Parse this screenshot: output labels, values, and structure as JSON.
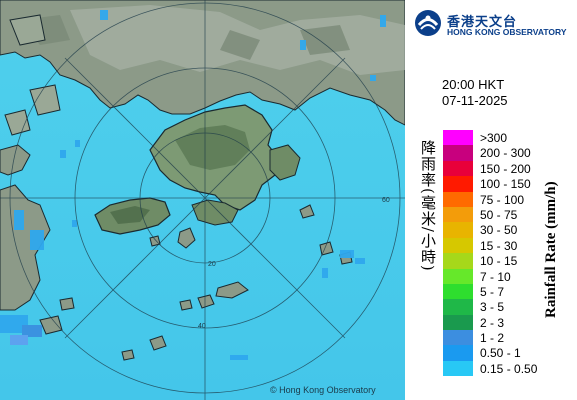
{
  "header": {
    "logo_zh": "香港天文台",
    "logo_en": "HONG KONG OBSERVATORY",
    "time": "20:00 HKT",
    "date": "07-11-2025"
  },
  "legend": {
    "title_zh": "降雨率(毫米/小時)",
    "title_en": "Rainfall Rate (mm/h)",
    "items": [
      {
        "label": ">300",
        "color": "#ff00ff"
      },
      {
        "label": "200 - 300",
        "color": "#c8007e"
      },
      {
        "label": "150 - 200",
        "color": "#e8003a"
      },
      {
        "label": "100 - 150",
        "color": "#ff1a00"
      },
      {
        "label": "75 - 100",
        "color": "#ff6a00"
      },
      {
        "label": "50 - 75",
        "color": "#f39c0a"
      },
      {
        "label": "30 - 50",
        "color": "#e8b400"
      },
      {
        "label": "15 - 30",
        "color": "#d6c800"
      },
      {
        "label": "10 - 15",
        "color": "#a6d81a"
      },
      {
        "label": "7 - 10",
        "color": "#66e82a"
      },
      {
        "label": "5 - 7",
        "color": "#2ede2e"
      },
      {
        "label": "3 - 5",
        "color": "#1fb848"
      },
      {
        "label": "2 - 3",
        "color": "#1a9a4e"
      },
      {
        "label": "1 - 2",
        "color": "#3c8ee0"
      },
      {
        "label": "0.50 - 1",
        "color": "#1a9af0"
      },
      {
        "label": "0.15 - 0.50",
        "color": "#28c8f5"
      }
    ]
  },
  "map": {
    "credit": "© Hong Kong Observatory",
    "range_rings": [
      {
        "label": "20"
      },
      {
        "label": "40"
      },
      {
        "label": "60"
      }
    ]
  }
}
